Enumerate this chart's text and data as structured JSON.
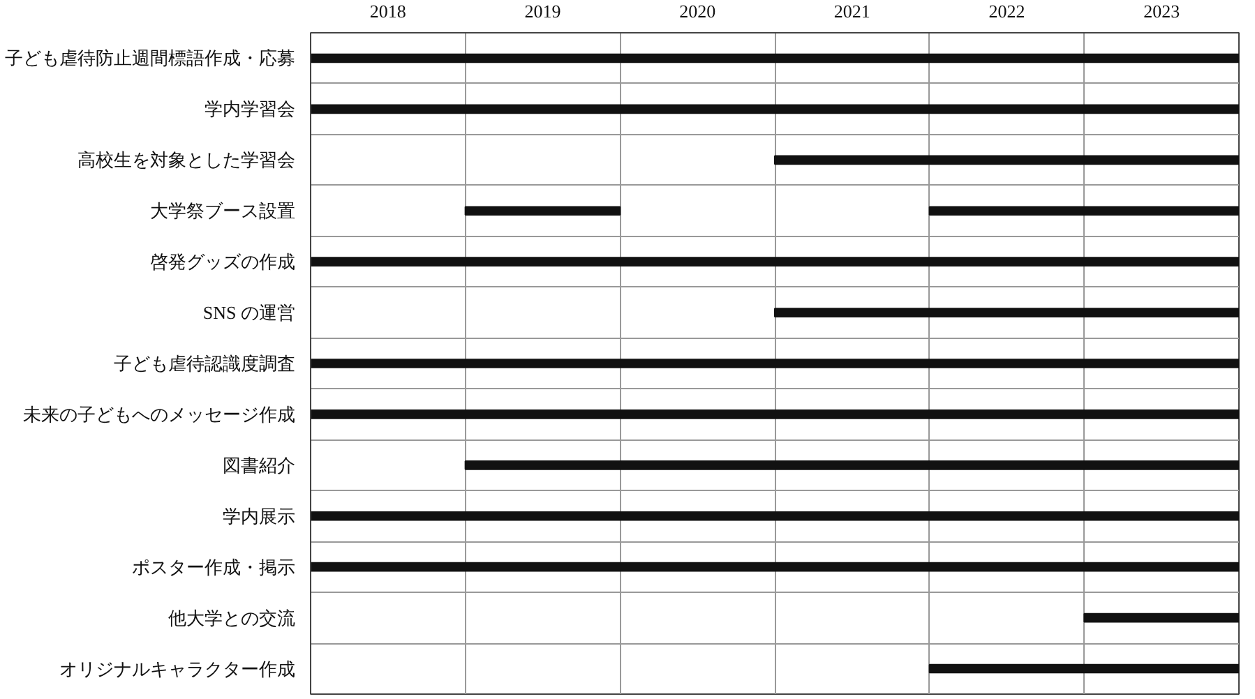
{
  "chart_data": {
    "type": "bar",
    "orientation": "horizontal",
    "categories": [
      "子ども虐待防止週間標語作成・応募",
      "学内学習会",
      "高校生を対象とした学習会",
      "大学祭ブース設置",
      "啓発グッズの作成",
      "SNS の運営",
      "子ども虐待認識度調査",
      "未来の子どもへのメッセージ作成",
      "図書紹介",
      "学内展示",
      "ポスター作成・掲示",
      "他大学との交流",
      "オリジナルキャラクター作成"
    ],
    "series": [
      {
        "color": "#111111",
        "base": [
          2018,
          2018,
          2021,
          2019,
          2018,
          2021,
          2018,
          2018,
          2019,
          2018,
          2018,
          2023,
          2022
        ],
        "values": [
          6,
          6,
          3,
          1,
          6,
          3,
          6,
          6,
          5,
          6,
          6,
          1,
          2
        ]
      },
      {
        "color": "#111111",
        "base": [
          null,
          null,
          null,
          2022,
          null,
          null,
          null,
          null,
          null,
          null,
          null,
          null,
          null
        ],
        "values": [
          null,
          null,
          null,
          2,
          null,
          null,
          null,
          null,
          null,
          null,
          null,
          null,
          null
        ]
      }
    ],
    "xlim": [
      2018,
      2024
    ],
    "xticks": [
      {
        "value": 2018.5,
        "label": "2018"
      },
      {
        "value": 2019.5,
        "label": "2019"
      },
      {
        "value": 2020.5,
        "label": "2020"
      },
      {
        "value": 2021.5,
        "label": "2021"
      },
      {
        "value": 2022.5,
        "label": "2022"
      },
      {
        "value": 2023.5,
        "label": "2023"
      }
    ],
    "grid": true
  }
}
